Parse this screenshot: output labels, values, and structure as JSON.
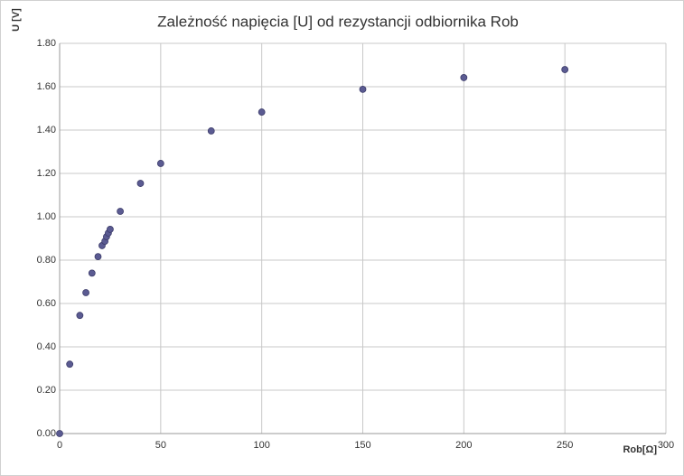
{
  "chart_data": {
    "type": "scatter",
    "title": "Zależność napięcia [U] od rezystancji odbiornika Rob",
    "x_label": "Rob[Ω]",
    "y_label": "U [V]",
    "x": [
      0,
      5,
      10,
      13,
      16,
      19,
      21,
      22.4,
      23.2,
      24.1,
      25,
      30,
      40,
      50,
      75,
      100,
      150,
      200,
      250
    ],
    "series": [
      {
        "color": "#5b5b92",
        "values": [
          0,
          0.32,
          0.545,
          0.65,
          0.74,
          0.816,
          0.867,
          0.887,
          0.908,
          0.925,
          0.942,
          1.025,
          1.154,
          1.246,
          1.396,
          1.483,
          1.588,
          1.642,
          1.679
        ]
      }
    ],
    "xlim": [
      0,
      300
    ],
    "xticks": [
      0,
      50,
      100,
      150,
      200,
      250,
      300
    ],
    "ylim": [
      0,
      1.8
    ],
    "yticks": [
      {
        "value": 0,
        "label": "0.00"
      },
      {
        "value": 0.2,
        "label": "0.20"
      },
      {
        "value": 0.4,
        "label": "0.40"
      },
      {
        "value": 0.6,
        "label": "0.60"
      },
      {
        "value": 0.8,
        "label": "0.80"
      },
      {
        "value": 1,
        "label": "1.00"
      },
      {
        "value": 1.2,
        "label": "1.20"
      },
      {
        "value": 1.4,
        "label": "1.40"
      },
      {
        "value": 1.6,
        "label": "1.60"
      },
      {
        "value": 1.8,
        "label": "1.80"
      }
    ],
    "grid": true
  }
}
